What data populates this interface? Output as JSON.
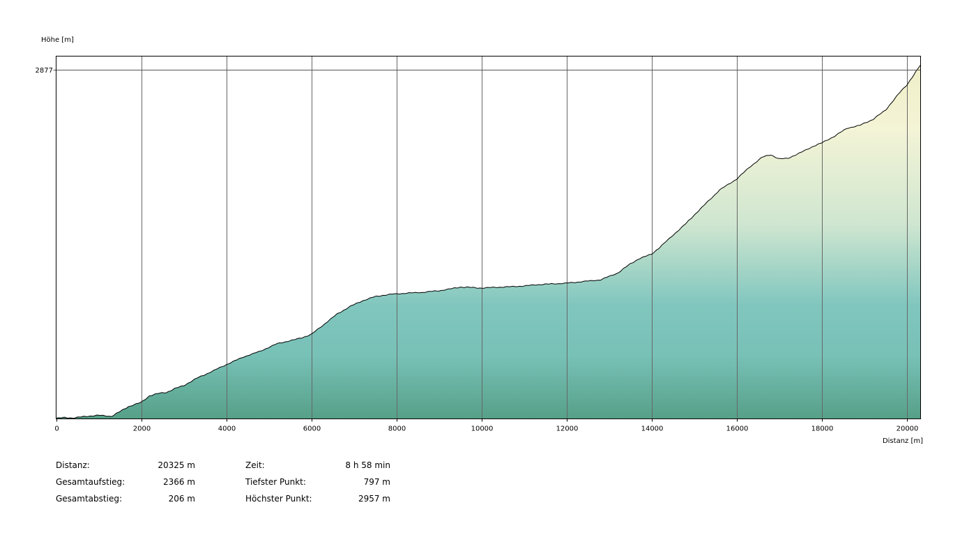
{
  "chart_data": {
    "type": "area",
    "ylabel": "Höhe [m]",
    "xlabel": "Distanz [m]",
    "xlim": [
      0,
      20325
    ],
    "ylim": [
      797,
      2957
    ],
    "x_ticks": [
      0,
      2000,
      4000,
      6000,
      8000,
      10000,
      12000,
      14000,
      16000,
      18000,
      20000
    ],
    "x_tick_labels": [
      "0",
      "2000",
      "4000",
      "6000",
      "8000",
      "10000",
      "12000",
      "14000",
      "16000",
      "18000",
      "20000"
    ],
    "y_ref_value": 2877,
    "y_ref_label": "2877",
    "grid": "vertical",
    "colors": {
      "fill_top": "#f4f4d6",
      "fill_mid": "#80c6be",
      "fill_bottom": "#56a088",
      "line": "#000000",
      "grid": "#6f6f6f"
    },
    "series": [
      {
        "x": [
          0,
          200,
          400,
          700,
          1000,
          1300,
          1500,
          1700,
          2000,
          2200,
          2400,
          2600,
          2800,
          3000,
          3300,
          3600,
          4000,
          4400,
          4800,
          5200,
          5600,
          5800,
          6000,
          6300,
          6600,
          6900,
          7200,
          7500,
          7800,
          8200,
          8600,
          9000,
          9300,
          9500,
          9700,
          10000,
          10300,
          10600,
          11000,
          11300,
          11600,
          12000,
          12400,
          12800,
          13200,
          13500,
          13700,
          14000,
          14200,
          14500,
          14800,
          15000,
          15300,
          15600,
          16000,
          16300,
          16600,
          16800,
          17000,
          17200,
          17500,
          17800,
          18000,
          18300,
          18600,
          18900,
          19200,
          19500,
          19800,
          20000,
          20150,
          20325
        ],
        "y": [
          800,
          805,
          802,
          812,
          818,
          812,
          840,
          870,
          895,
          935,
          948,
          955,
          978,
          995,
          1038,
          1072,
          1120,
          1165,
          1200,
          1245,
          1268,
          1282,
          1300,
          1360,
          1420,
          1465,
          1500,
          1525,
          1537,
          1545,
          1550,
          1560,
          1572,
          1582,
          1580,
          1576,
          1580,
          1583,
          1588,
          1596,
          1600,
          1605,
          1615,
          1625,
          1665,
          1720,
          1750,
          1778,
          1820,
          1890,
          1958,
          2010,
          2085,
          2160,
          2225,
          2295,
          2355,
          2370,
          2345,
          2348,
          2382,
          2420,
          2440,
          2480,
          2528,
          2545,
          2580,
          2635,
          2730,
          2785,
          2840,
          2905
        ]
      }
    ],
    "stats": [
      {
        "label": "Distanz:",
        "value": "20325 m"
      },
      {
        "label": "Gesamtaufstieg:",
        "value": "2366 m"
      },
      {
        "label": "Gesamtabstieg:",
        "value": "206 m"
      },
      {
        "label": "Zeit:",
        "value": "8 h 58 min"
      },
      {
        "label": "Tiefster Punkt:",
        "value": "797 m"
      },
      {
        "label": "Höchster Punkt:",
        "value": "2957 m"
      }
    ]
  }
}
